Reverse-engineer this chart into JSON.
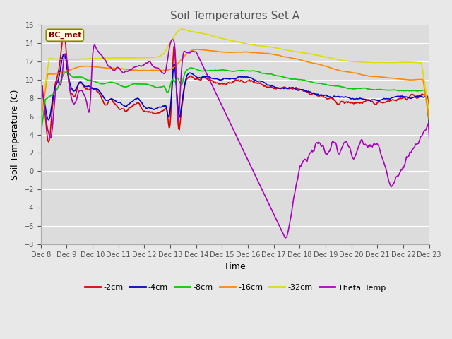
{
  "title": "Soil Temperatures Set A",
  "xlabel": "Time",
  "ylabel": "Soil Temperature (C)",
  "ylim": [
    -8,
    16
  ],
  "yticks": [
    -8,
    -6,
    -4,
    -2,
    0,
    2,
    4,
    6,
    8,
    10,
    12,
    14,
    16
  ],
  "x_labels": [
    "Dec 8",
    "Dec 9",
    "Dec 10",
    "Dec 11",
    "Dec 12",
    "Dec 13",
    "Dec 14",
    "Dec 15",
    "Dec 16",
    "Dec 17",
    "Dec 18",
    "Dec 19",
    "Dec 20",
    "Dec 21",
    "Dec 22",
    "Dec 23"
  ],
  "annotation_text": "BC_met",
  "fig_facecolor": "#e8e8e8",
  "ax_facecolor": "#dcdcdc",
  "grid_color": "#ffffff",
  "series_colors": {
    "2cm": "#dd0000",
    "4cm": "#0000cc",
    "8cm": "#00cc00",
    "16cm": "#ff8800",
    "32cm": "#dddd00",
    "theta": "#aa00bb"
  },
  "legend_labels": [
    "-2cm",
    "-4cm",
    "-8cm",
    "-16cm",
    "-32cm",
    "Theta_Temp"
  ]
}
